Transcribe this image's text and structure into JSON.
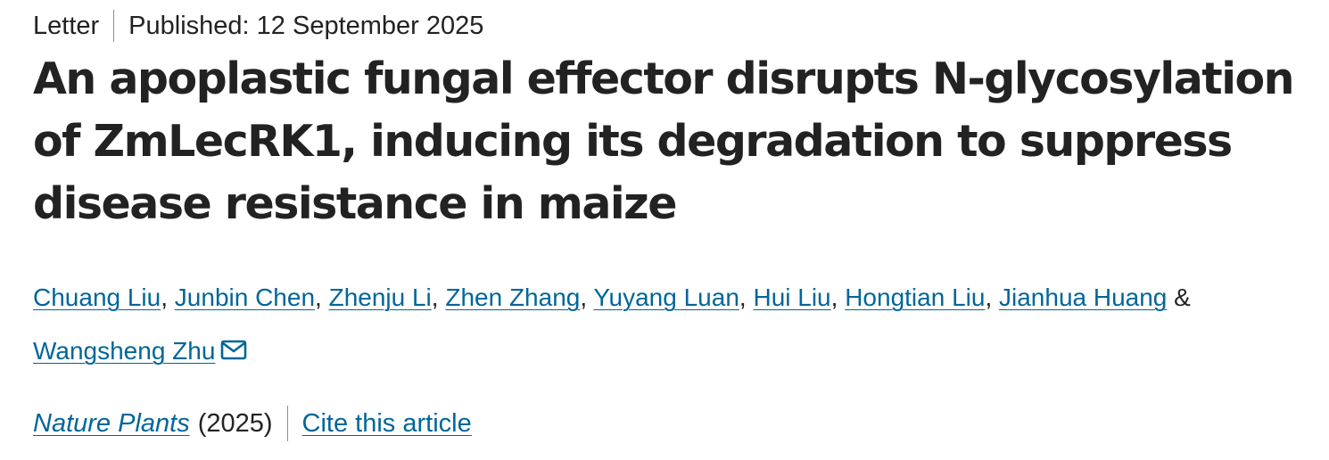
{
  "article": {
    "type": "Letter",
    "published": "Published: 12 September 2025",
    "title": "An apoplastic fungal effector disrupts N-glycosylation of ZmLecRK1, inducing its degradation to suppress disease resistance in maize",
    "authors": [
      "Chuang Liu",
      "Junbin Chen",
      "Zhenju Li",
      "Zhen Zhang",
      "Yuyang Luan",
      "Hui Liu",
      "Hongtian Liu",
      "Jianhua Huang",
      "Wangsheng Zhu"
    ],
    "author_separator": ",",
    "author_last_conjunction": "&",
    "corresponding_icon": "envelope-icon",
    "journal": "Nature Plants",
    "year": "(2025)",
    "cite_label": "Cite this article"
  },
  "colors": {
    "link": "#006699",
    "text": "#222222",
    "separator": "#8c8c8c"
  }
}
